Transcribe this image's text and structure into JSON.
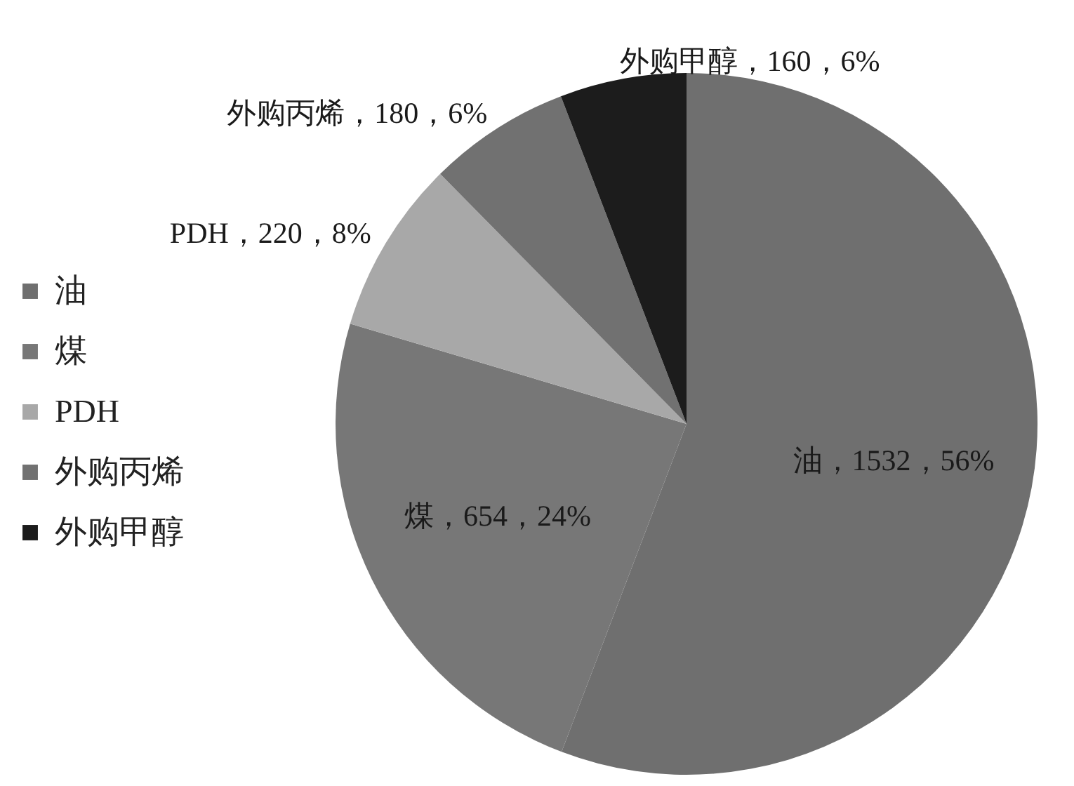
{
  "chart_data": {
    "type": "pie",
    "categories": [
      "油",
      "煤",
      "PDH",
      "外购丙烯",
      "外购甲醇"
    ],
    "values": [
      1532,
      654,
      220,
      180,
      160
    ],
    "colors": [
      "#6f6f6f",
      "#777777",
      "#a8a8a8",
      "#717171",
      "#1c1c1c"
    ],
    "value_labels": [
      "油，1532，56%",
      "煤，654，24%",
      "PDH，220，8%",
      "外购丙烯，180，6%",
      "外购甲醇，160，6%"
    ],
    "legend": "left"
  }
}
